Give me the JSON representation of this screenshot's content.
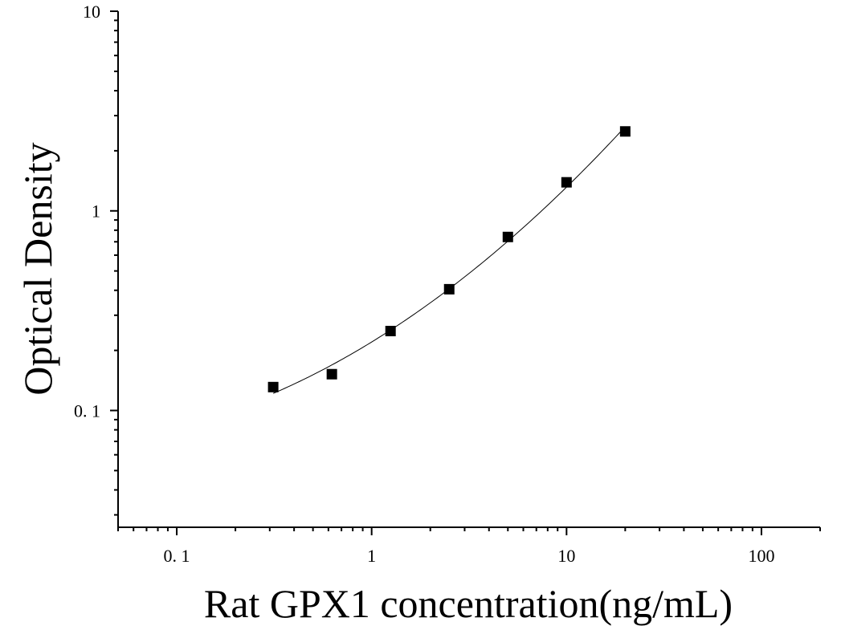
{
  "chart_data": {
    "type": "scatter",
    "xlabel": "Rat GPX1 concentration(ng/mL)",
    "ylabel": "Optical Density",
    "x_scale": "log",
    "y_scale": "log",
    "xlim": [
      0.05,
      200
    ],
    "ylim": [
      0.026,
      10
    ],
    "x_ticks": [
      0.1,
      1,
      10,
      100
    ],
    "x_tick_labels": [
      "0. 1",
      "1",
      "10",
      "100"
    ],
    "y_ticks": [
      0.1,
      1,
      10
    ],
    "y_tick_labels": [
      "0. 1",
      "1",
      "10"
    ],
    "grid": false,
    "points": {
      "x": [
        0.3125,
        0.625,
        1.25,
        2.5,
        5,
        10,
        20
      ],
      "y": [
        0.131,
        0.152,
        0.25,
        0.405,
        0.74,
        1.39,
        2.5
      ]
    },
    "fit_curve": true,
    "marker": "filled-square",
    "colors": {
      "marker": "#000000",
      "line": "#000000",
      "axis": "#000000"
    }
  }
}
